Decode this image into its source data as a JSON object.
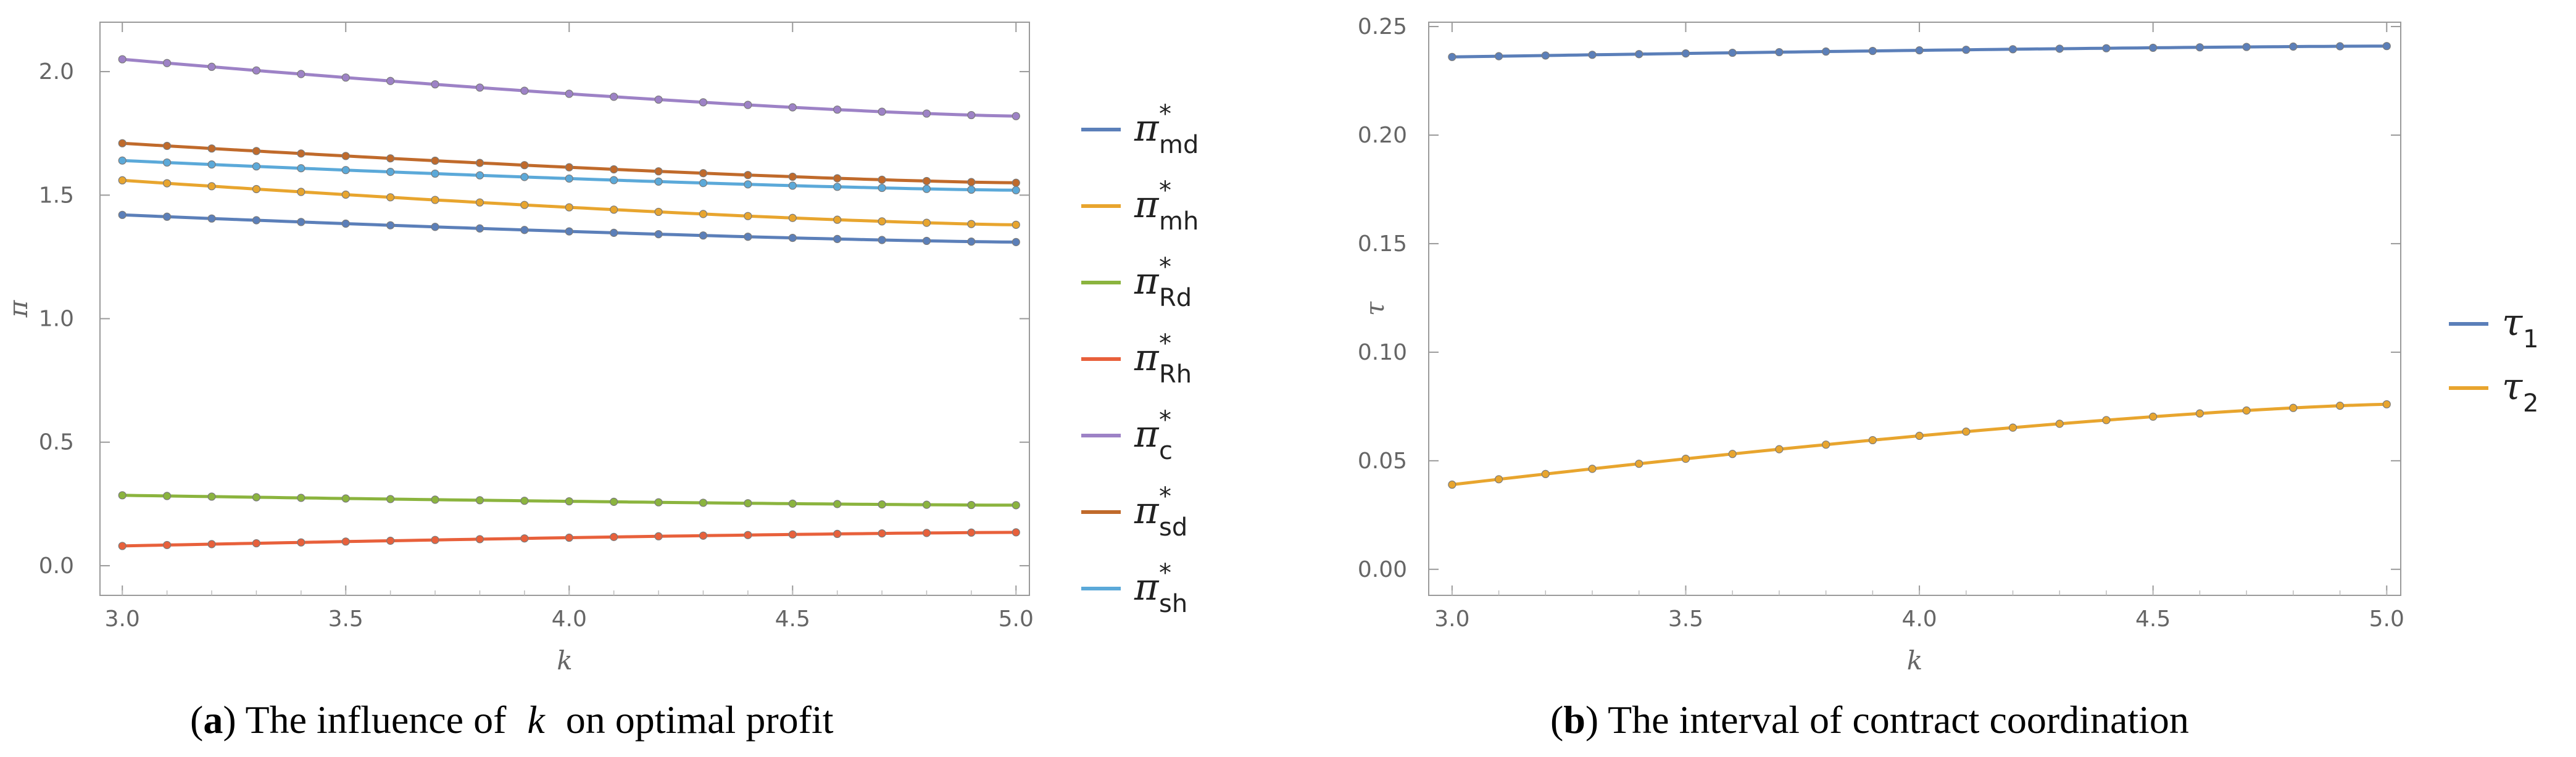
{
  "chart_data": [
    {
      "type": "line",
      "xlabel": "k",
      "ylabel": "π",
      "xlim": [
        2.95,
        5.03
      ],
      "ylim": [
        -0.12,
        2.2
      ],
      "xticks": [
        "3.0",
        "3.5",
        "4.0",
        "4.5",
        "5.0"
      ],
      "yticks": [
        "0.0",
        "0.5",
        "1.0",
        "1.5",
        "2.0"
      ],
      "x_start": 3.0,
      "x_end": 5.0,
      "marker_count": 21,
      "series": [
        {
          "name": "π*md",
          "base": "π",
          "sup": "*",
          "sub": "md",
          "color": "#5b7fb9",
          "start": 1.42,
          "end": 1.31
        },
        {
          "name": "π*mh",
          "base": "π",
          "sup": "*",
          "sub": "mh",
          "color": "#e8a52e",
          "start": 1.56,
          "end": 1.38
        },
        {
          "name": "π*Rd",
          "base": "π",
          "sup": "*",
          "sub": "Rd",
          "color": "#8bb43e",
          "start": 0.285,
          "end": 0.245
        },
        {
          "name": "π*Rh",
          "base": "π",
          "sup": "*",
          "sub": "Rh",
          "color": "#e8603b",
          "start": 0.08,
          "end": 0.135
        },
        {
          "name": "π*c",
          "base": "π",
          "sup": "*",
          "sub": "c",
          "color": "#9d82c6",
          "start": 2.05,
          "end": 1.82
        },
        {
          "name": "π*sd",
          "base": "π",
          "sup": "*",
          "sub": "sd",
          "color": "#c06a2b",
          "start": 1.71,
          "end": 1.55
        },
        {
          "name": "π*sh",
          "base": "π",
          "sup": "*",
          "sub": "sh",
          "color": "#5ba9d9",
          "start": 1.64,
          "end": 1.52
        }
      ],
      "caption": {
        "label": "a",
        "text_before": " The influence of ",
        "variable": "k",
        "text_after": " on optimal profit"
      }
    },
    {
      "type": "line",
      "xlabel": "k",
      "ylabel": "τ",
      "xlim": [
        2.95,
        5.03
      ],
      "ylim": [
        -0.012,
        0.252
      ],
      "xticks": [
        "3.0",
        "3.5",
        "4.0",
        "4.5",
        "5.0"
      ],
      "yticks": [
        "0.00",
        "0.05",
        "0.10",
        "0.15",
        "0.20",
        "0.25"
      ],
      "x_start": 3.0,
      "x_end": 5.0,
      "marker_count": 21,
      "series": [
        {
          "name": "τ1",
          "base": "τ",
          "sup": "",
          "sub": "1",
          "color": "#5b7fb9",
          "start": 0.236,
          "end": 0.241
        },
        {
          "name": "τ2",
          "base": "τ",
          "sup": "",
          "sub": "2",
          "color": "#e8a52e",
          "start": 0.039,
          "end": 0.076
        }
      ],
      "caption": {
        "label": "b",
        "text_before": " The interval of contract coordination",
        "variable": "",
        "text_after": ""
      }
    }
  ]
}
